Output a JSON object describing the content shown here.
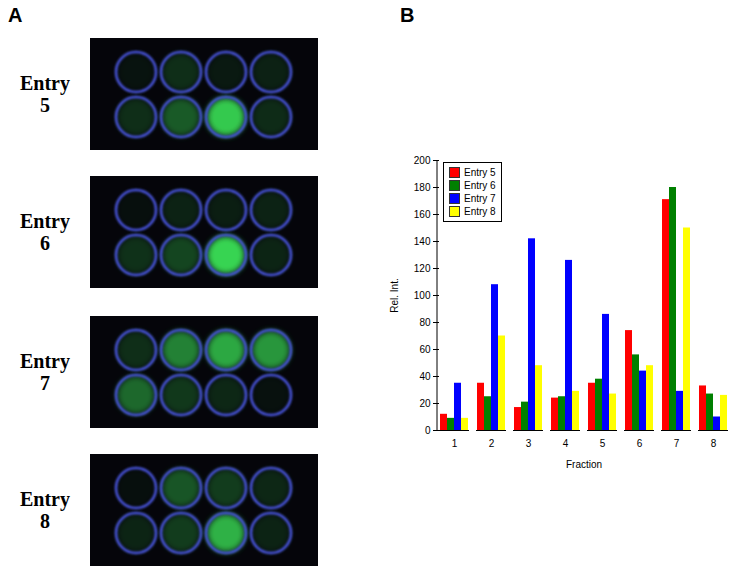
{
  "panel_a": {
    "label": "A"
  },
  "chart_data": {
    "type": "bar",
    "panel_label": "B",
    "xlabel": "Fraction",
    "ylabel": "Rel. Int.",
    "categories": [
      1,
      2,
      3,
      4,
      5,
      6,
      7,
      8
    ],
    "series": [
      {
        "name": "Entry 5",
        "color": "#ff0000",
        "values": [
          12,
          35,
          17,
          24,
          35,
          74,
          171,
          33
        ]
      },
      {
        "name": "Entry 6",
        "color": "#008000",
        "values": [
          9,
          25,
          21,
          25,
          38,
          56,
          180,
          27
        ]
      },
      {
        "name": "Entry 7",
        "color": "#0000ff",
        "values": [
          35,
          108,
          142,
          126,
          86,
          44,
          29,
          10
        ]
      },
      {
        "name": "Entry 8",
        "color": "#ffff00",
        "values": [
          9,
          70,
          48,
          29,
          27,
          48,
          150,
          26
        ]
      }
    ],
    "ylim": [
      0,
      200
    ],
    "yticks": [
      0,
      20,
      40,
      60,
      80,
      100,
      120,
      140,
      160,
      180,
      200
    ],
    "legend": "top-left"
  }
}
